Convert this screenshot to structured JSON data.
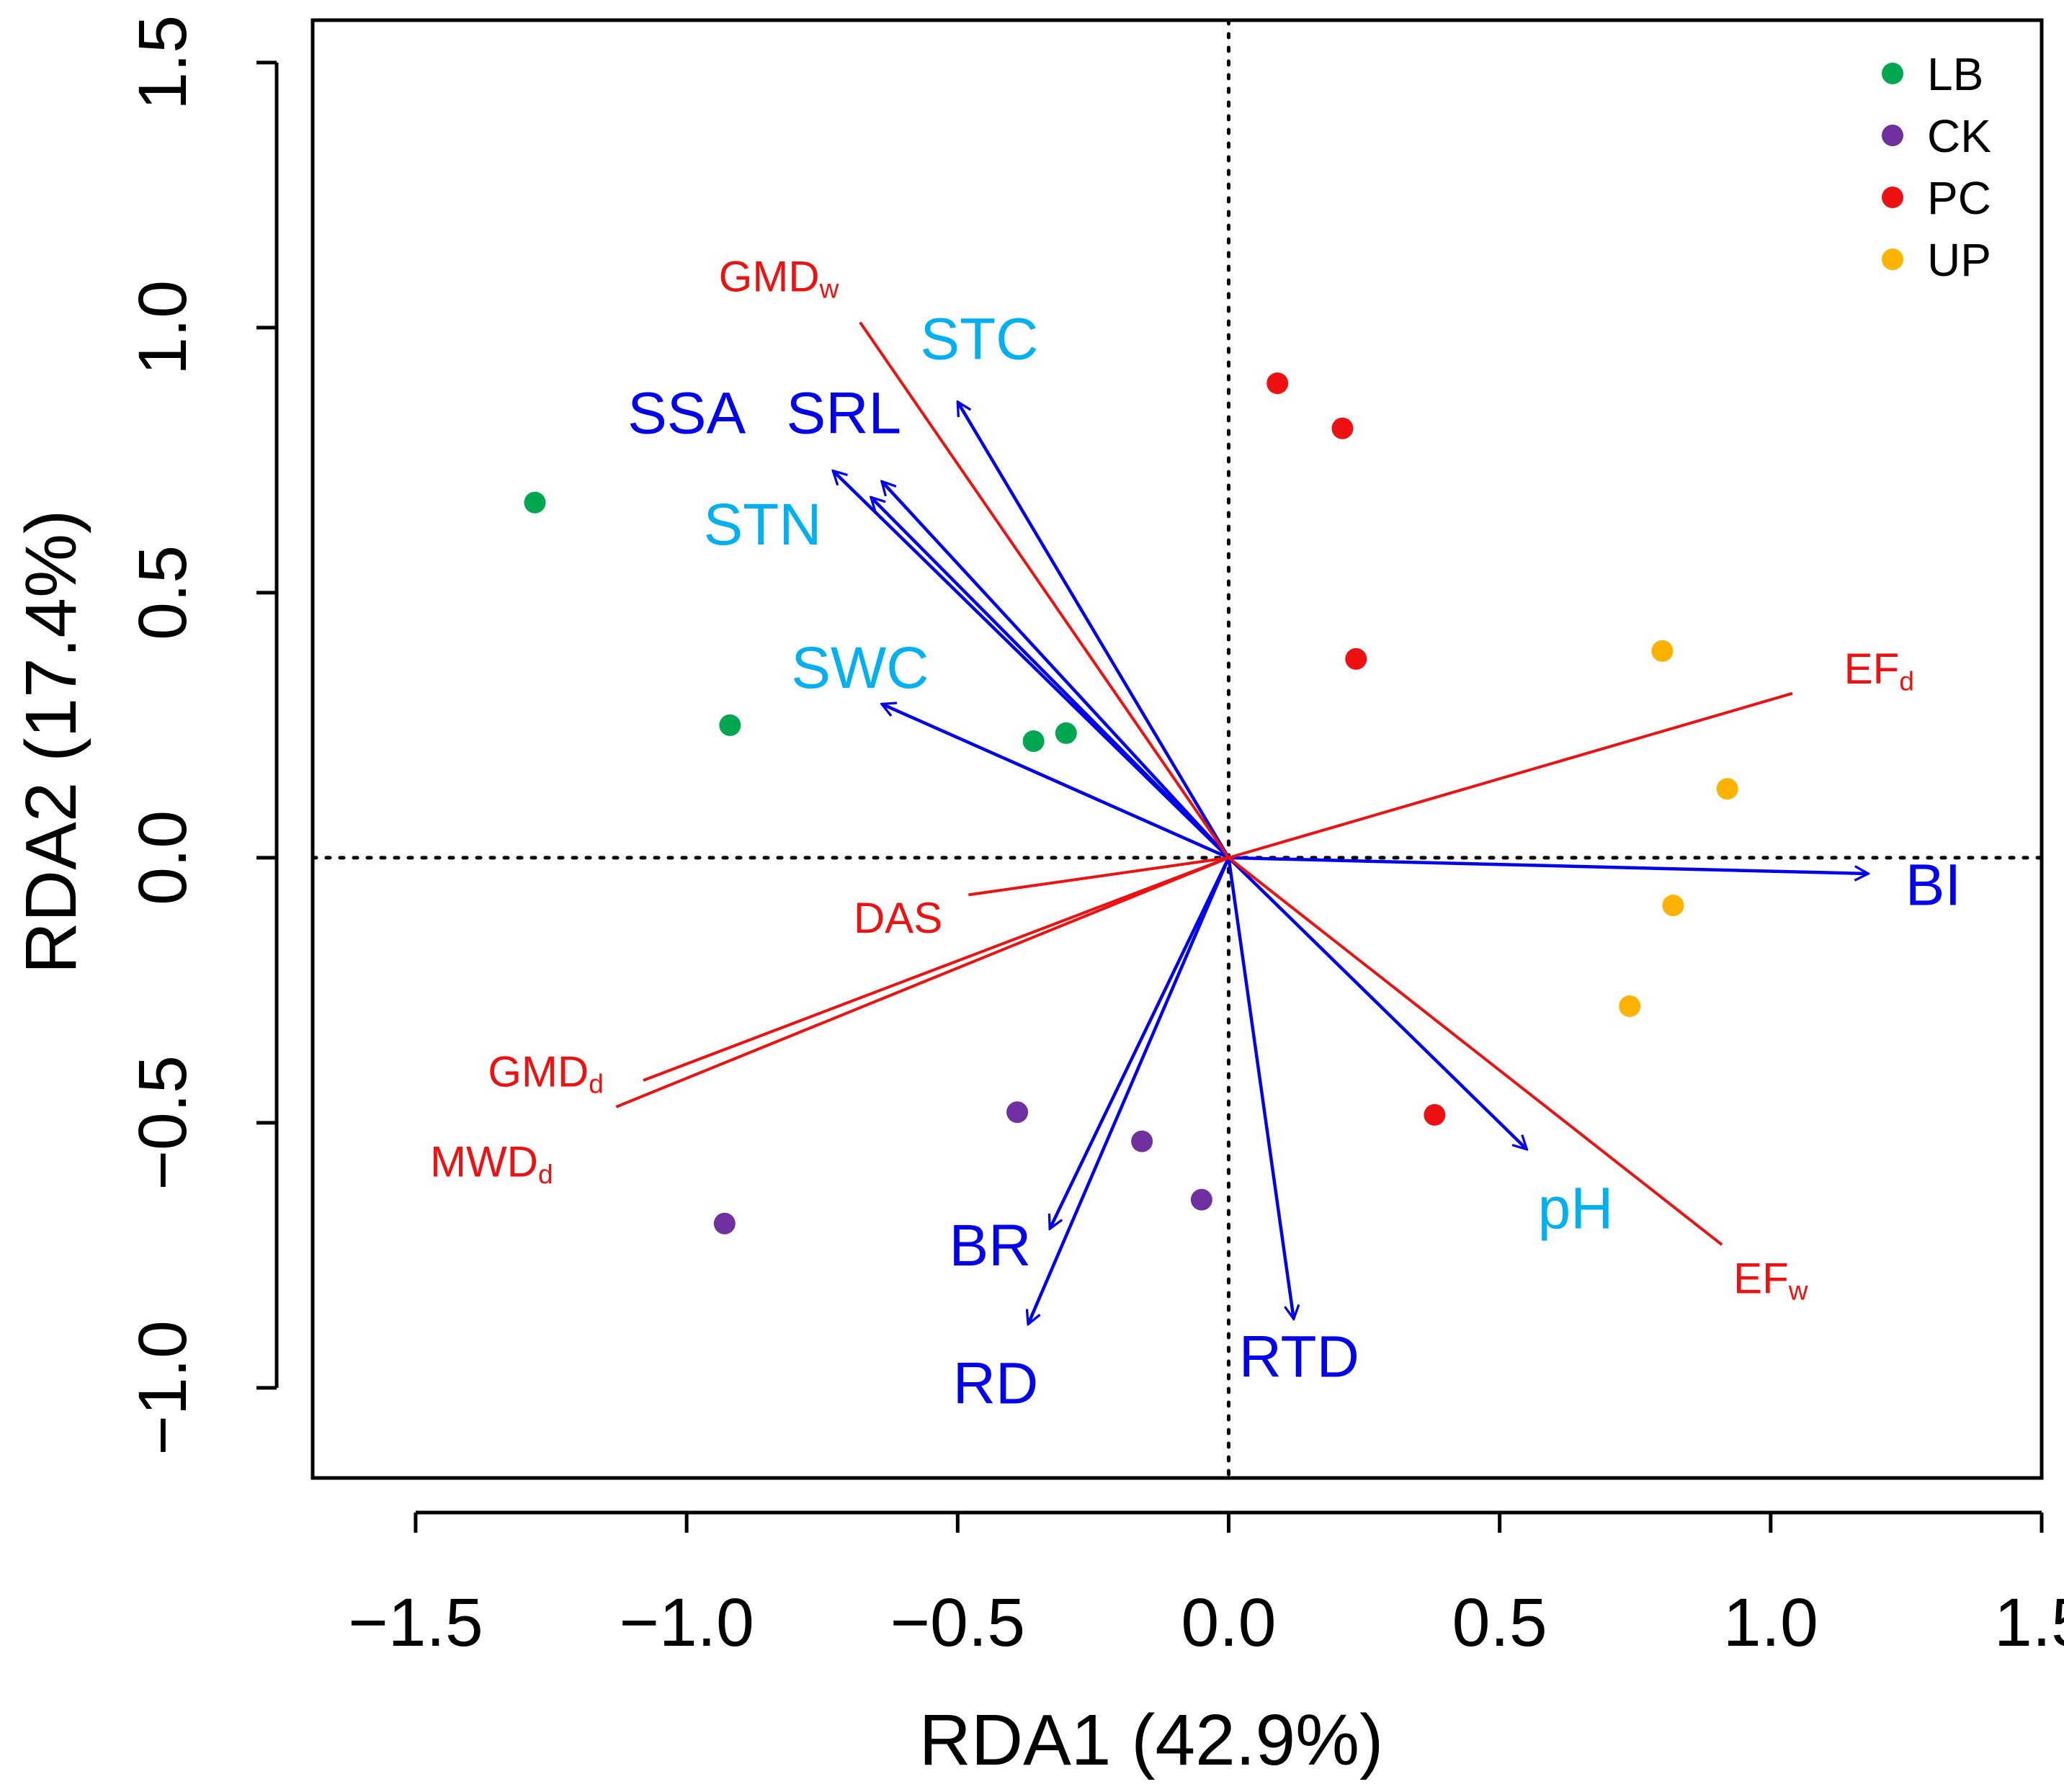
{
  "chart_data": {
    "type": "scatter",
    "title": "",
    "xlabel": "RDA1 (42.9%)",
    "ylabel": "RDA2 (17.4%)",
    "xlim": [
      -1.69,
      1.5
    ],
    "ylim": [
      -1.17,
      1.58
    ],
    "xticks": [
      -1.5,
      -1.0,
      -0.5,
      0.0,
      0.5,
      1.0,
      1.5
    ],
    "xtick_labels": [
      "−1.5",
      "−1.0",
      "−0.5",
      "0.0",
      "0.5",
      "1.0",
      "1.5"
    ],
    "yticks": [
      -1.0,
      -0.5,
      0.0,
      0.5,
      1.0,
      1.5
    ],
    "ytick_labels": [
      "−1.0",
      "−0.5",
      "0.0",
      "0.5",
      "1.0",
      "1.5"
    ],
    "reference_lines": {
      "x": 0,
      "y": 0,
      "style": "dotted"
    },
    "legend": {
      "position": "top-right",
      "entries": [
        {
          "label": "LB",
          "color": "#00a650"
        },
        {
          "label": "CK",
          "color": "#7030a0"
        },
        {
          "label": "PC",
          "color": "#ee1111"
        },
        {
          "label": "UP",
          "color": "#ffb300"
        }
      ]
    },
    "series": [
      {
        "name": "LB",
        "color": "#00a650",
        "points": [
          [
            -1.28,
            0.67
          ],
          [
            -0.92,
            0.25
          ],
          [
            -0.36,
            0.22
          ],
          [
            -0.3,
            0.235
          ]
        ]
      },
      {
        "name": "CK",
        "color": "#7030a0",
        "points": [
          [
            -0.93,
            -0.69
          ],
          [
            -0.39,
            -0.48
          ],
          [
            -0.16,
            -0.535
          ],
          [
            -0.05,
            -0.645
          ]
        ]
      },
      {
        "name": "PC",
        "color": "#ee1111",
        "points": [
          [
            0.09,
            0.895
          ],
          [
            0.21,
            0.81
          ],
          [
            0.235,
            0.375
          ],
          [
            0.38,
            -0.485
          ]
        ]
      },
      {
        "name": "UP",
        "color": "#ffb300",
        "points": [
          [
            0.8,
            0.39
          ],
          [
            0.92,
            0.13
          ],
          [
            0.82,
            -0.09
          ],
          [
            0.74,
            -0.28
          ]
        ]
      }
    ],
    "vectors": [
      {
        "name": "STC",
        "label": "STC",
        "kind": "arrow",
        "color": "#0000ee",
        "label_color": "#00b0f0",
        "end": [
          -0.5,
          0.86
        ],
        "label_pos": [
          -0.46,
          0.97
        ]
      },
      {
        "name": "SRL",
        "label": "SRL",
        "kind": "arrow",
        "color": "#0000ee",
        "label_color": "#0000ee",
        "end": [
          -0.64,
          0.71
        ],
        "label_pos": [
          -0.71,
          0.83
        ]
      },
      {
        "name": "SSA",
        "label": "SSA",
        "kind": "arrow",
        "color": "#0000ee",
        "label_color": "#0000ee",
        "end": [
          -0.66,
          0.68
        ],
        "label_pos": [
          -1.0,
          0.83
        ]
      },
      {
        "name": "STN",
        "label": "STN",
        "kind": "arrow",
        "color": "#0000ee",
        "label_color": "#00b0f0",
        "end": [
          -0.73,
          0.73
        ],
        "label_pos": [
          -0.86,
          0.62
        ]
      },
      {
        "name": "SWC",
        "label": "SWC",
        "kind": "arrow",
        "color": "#0000ee",
        "label_color": "#00b0f0",
        "end": [
          -0.64,
          0.29
        ],
        "label_pos": [
          -0.68,
          0.35
        ]
      },
      {
        "name": "BI",
        "label": "BI",
        "kind": "arrow",
        "color": "#0000ee",
        "label_color": "#0000ee",
        "end": [
          1.18,
          -0.03
        ],
        "label_pos": [
          1.3,
          -0.06
        ]
      },
      {
        "name": "pH",
        "label": "pH",
        "kind": "arrow",
        "color": "#0000ee",
        "label_color": "#00b0f0",
        "end": [
          0.55,
          -0.55
        ],
        "label_pos": [
          0.64,
          -0.67
        ]
      },
      {
        "name": "RTD",
        "label": "RTD",
        "kind": "arrow",
        "color": "#0000ee",
        "label_color": "#0000ee",
        "end": [
          0.12,
          -0.87
        ],
        "label_pos": [
          0.13,
          -0.95
        ]
      },
      {
        "name": "BR",
        "label": "BR",
        "kind": "arrow",
        "color": "#0000ee",
        "label_color": "#0000ee",
        "end": [
          -0.33,
          -0.7
        ],
        "label_pos": [
          -0.44,
          -0.74
        ]
      },
      {
        "name": "RD",
        "label": "RD",
        "kind": "arrow",
        "color": "#0000ee",
        "label_color": "#0000ee",
        "end": [
          -0.37,
          -0.88
        ],
        "label_pos": [
          -0.43,
          -1.0
        ]
      },
      {
        "name": "GMDw",
        "label": "GMD",
        "subscript": "w",
        "kind": "line",
        "color": "#ee1111",
        "label_color": "#ee1111",
        "end": [
          -0.68,
          1.01
        ],
        "label_pos": [
          -0.83,
          1.09
        ]
      },
      {
        "name": "EFd",
        "label": "EF",
        "subscript": "d",
        "kind": "line",
        "color": "#ee1111",
        "label_color": "#ee1111",
        "end": [
          1.04,
          0.31
        ],
        "label_pos": [
          1.2,
          0.35
        ]
      },
      {
        "name": "EFw",
        "label": "EF",
        "subscript": "w",
        "kind": "line",
        "color": "#ee1111",
        "label_color": "#ee1111",
        "end": [
          0.91,
          -0.73
        ],
        "label_pos": [
          1.0,
          -0.8
        ]
      },
      {
        "name": "DAS",
        "label": "DAS",
        "kind": "line",
        "color": "#ee1111",
        "label_color": "#ee1111",
        "end": [
          -0.48,
          -0.07
        ],
        "label_pos": [
          -0.61,
          -0.12
        ]
      },
      {
        "name": "GMDd",
        "label": "GMD",
        "subscript": "d",
        "kind": "line",
        "color": "#ee1111",
        "label_color": "#ee1111",
        "end": [
          -1.08,
          -0.42
        ],
        "label_pos": [
          -1.26,
          -0.41
        ]
      },
      {
        "name": "MWDd",
        "label": "MWD",
        "subscript": "d",
        "kind": "line",
        "color": "#ee1111",
        "label_color": "#ee1111",
        "end": [
          -1.13,
          -0.47
        ],
        "label_pos": [
          -1.36,
          -0.58
        ]
      }
    ]
  }
}
